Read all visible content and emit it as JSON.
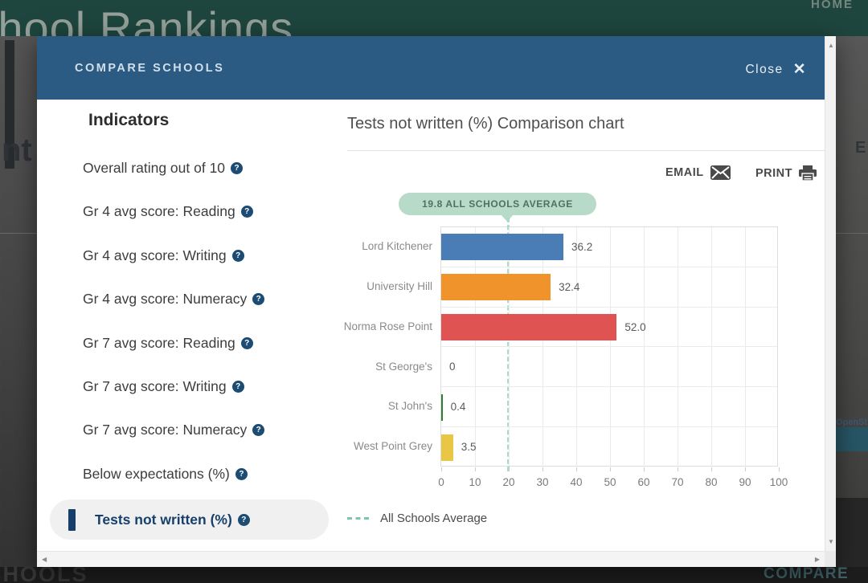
{
  "page_background": {
    "page_title": "School Rankings",
    "nav_home": "HOME",
    "footer_left": "SCHOOLS",
    "footer_compare": "COMPARE",
    "left_fragment": "nt",
    "right_fragment_e": "E",
    "right_fragment_osm": "OpenSt"
  },
  "modal": {
    "header": {
      "title": "COMPARE SCHOOLS",
      "close_label": "Close",
      "close_icon": "✕",
      "background_color": "#2b5b83"
    },
    "sidebar": {
      "heading": "Indicators",
      "items": [
        {
          "label": "Overall rating out of 10",
          "selected": false
        },
        {
          "label": "Gr 4 avg score: Reading",
          "selected": false
        },
        {
          "label": "Gr 4 avg score: Writing",
          "selected": false
        },
        {
          "label": "Gr 4 avg score: Numeracy",
          "selected": false
        },
        {
          "label": "Gr 7 avg score: Reading",
          "selected": false
        },
        {
          "label": "Gr 7 avg score: Writing",
          "selected": false
        },
        {
          "label": "Gr 7 avg score: Numeracy",
          "selected": false
        },
        {
          "label": "Below expectations (%)",
          "selected": false
        },
        {
          "label": "Tests not written (%)",
          "selected": true
        }
      ],
      "help_icon": "?"
    },
    "main": {
      "chart_title": "Tests not written (%) Comparison chart",
      "email_label": "EMAIL",
      "print_label": "PRINT",
      "average_callout": "19.8 ALL SCHOOLS AVERAGE",
      "legend_label": "All Schools Average"
    }
  },
  "chart_data": {
    "type": "bar",
    "orientation": "horizontal",
    "title": "Tests not written (%) Comparison chart",
    "categories": [
      "Lord Kitchener",
      "University Hill",
      "Norma Rose Point",
      "St George's",
      "St John's",
      "West Point Grey"
    ],
    "values": [
      36.2,
      32.4,
      52.0,
      0,
      0.4,
      3.5
    ],
    "value_labels": [
      "36.2",
      "32.4",
      "52.0",
      "0",
      "0.4",
      "3.5"
    ],
    "bar_colors": [
      "#4a7cb5",
      "#f0932a",
      "#df5353",
      "#4a7cb5",
      "#2f7d33",
      "#e9c644"
    ],
    "all_schools_average": 19.8,
    "average_line_color": "#a9dcc6",
    "xlim": [
      0,
      100
    ],
    "x_ticks": [
      0,
      10,
      20,
      30,
      40,
      50,
      60,
      70,
      80,
      90,
      100
    ],
    "grid": true,
    "legend_position": "bottom-left",
    "legend": [
      {
        "label": "All Schools Average",
        "style": "dashed-green"
      }
    ]
  }
}
